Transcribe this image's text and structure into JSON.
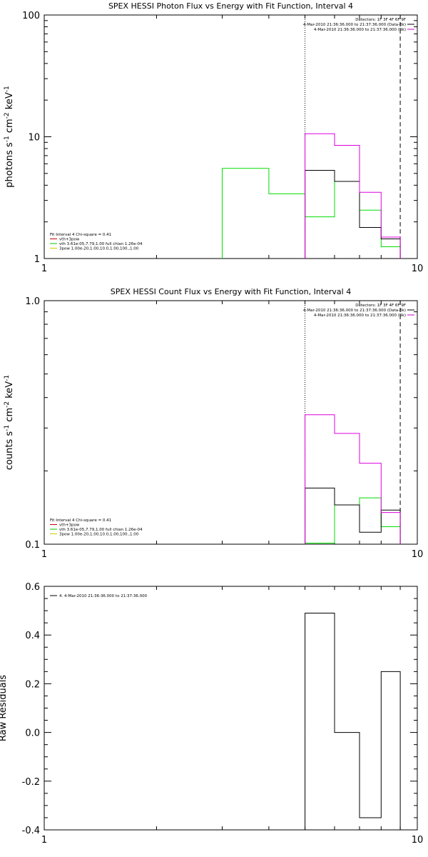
{
  "chart_data": [
    {
      "type": "line",
      "title": "SPEX HESSI Photon Flux vs Energy with Fit Function, Interval 4",
      "ylabel_html": "photons s<tspan baseline-shift='super' font-size='9'>-1</tspan> cm<tspan baseline-shift='super' font-size='9'>-2</tspan> keV<tspan baseline-shift='super' font-size='9'>-1</tspan>",
      "ylabel": "photons s-1 cm-2 keV-1",
      "xscale": "log",
      "yscale": "log",
      "xlim": [
        1,
        10
      ],
      "ylim": [
        1,
        100
      ],
      "xticks": [
        {
          "v": 1,
          "label": "1"
        },
        {
          "v": 10,
          "label": "10"
        }
      ],
      "yticks": [
        {
          "v": 1,
          "label": "1"
        },
        {
          "v": 10,
          "label": "10"
        },
        {
          "v": 100,
          "label": "100"
        }
      ],
      "vlines": [
        {
          "x": 5.0,
          "style": "dotted"
        },
        {
          "x": 9.0,
          "style": "dashed"
        }
      ],
      "legend_right": {
        "lines": [
          {
            "text": "Detectors: 1F 3F 4F 6F 9F",
            "color": null
          },
          {
            "text": "4-Mar-2010 21:36:36.000 to 21:37:36.000 (Data-Bk)",
            "color": "#000000"
          },
          {
            "text": "4-Mar-2010 21:36:36.000 to 21:37:36.000 (Bk)",
            "color": "#cc00cc"
          }
        ]
      },
      "legend_left": {
        "lines": [
          {
            "text": "Fit Interval  4    Chi-square = 0.41",
            "color": null
          },
          {
            "text": "vth+3pow",
            "color": "#cc0000"
          },
          {
            "text": "vth 3.61e-05,7.79,1.00  full chian 1.26e-04",
            "color": "#00cc00"
          },
          {
            "text": "3pow  1.00e-20,1.00,10.0,1.00,100.,1.00",
            "color": "#cccc00"
          }
        ]
      },
      "series": [
        {
          "color": "#00dd00",
          "edges": [
            3,
            4,
            5,
            6,
            7,
            8,
            9
          ],
          "values": [
            5.5,
            3.4,
            2.2,
            4.3,
            2.5,
            1.25
          ],
          "extend_left_to_floor": true
        },
        {
          "color": "#000000",
          "edges": [
            5,
            6,
            7,
            8,
            9
          ],
          "values": [
            5.3,
            4.3,
            1.8,
            1.45
          ],
          "extend_left_to_floor": true
        },
        {
          "color": "#dd00dd",
          "edges": [
            5,
            6,
            7,
            8,
            9
          ],
          "values": [
            10.6,
            8.5,
            3.5,
            1.5
          ],
          "extend_left_to_floor": true
        }
      ]
    },
    {
      "type": "line",
      "title": "SPEX HESSI Count Flux vs Energy with Fit Function, Interval 4",
      "ylabel_html": "counts s<tspan baseline-shift='super' font-size='9'>-1</tspan> cm<tspan baseline-shift='super' font-size='9'>-2</tspan> keV<tspan baseline-shift='super' font-size='9'>-1</tspan>",
      "ylabel": "counts s-1 cm-2 keV-1",
      "xscale": "log",
      "yscale": "log",
      "xlim": [
        1,
        10
      ],
      "ylim": [
        0.1,
        1.0
      ],
      "xticks": [
        {
          "v": 1,
          "label": "1"
        },
        {
          "v": 10,
          "label": "10"
        }
      ],
      "yticks": [
        {
          "v": 0.1,
          "label": "0.1"
        },
        {
          "v": 1.0,
          "label": "1.0"
        }
      ],
      "vlines": [
        {
          "x": 5.0,
          "style": "dotted"
        },
        {
          "x": 9.0,
          "style": "dashed"
        }
      ],
      "legend_right": {
        "lines": [
          {
            "text": "Detectors: 1F 3F 4F 6F 9F",
            "color": null
          },
          {
            "text": "4-Mar-2010 21:36:36.000 to 21:37:36.000 (Data-Bk)",
            "color": "#000000"
          },
          {
            "text": "4-Mar-2010 21:36:36.000 to 21:37:36.000 (Bk)",
            "color": "#cc00cc"
          }
        ]
      },
      "legend_left": {
        "lines": [
          {
            "text": "Fit Interval  4    Chi-square = 0.41",
            "color": null
          },
          {
            "text": "vth+3pow",
            "color": "#cc0000"
          },
          {
            "text": "vth 3.61e-05,7.79,1.00  full chian 1.26e-04",
            "color": "#00cc00"
          },
          {
            "text": "3pow  1.00e-20,1.00,10.0,1.00,100.,1.00",
            "color": "#cccc00"
          }
        ]
      },
      "series": [
        {
          "color": "#00dd00",
          "edges": [
            5,
            6,
            7,
            8,
            9
          ],
          "values": [
            0.101,
            0.145,
            0.155,
            0.118
          ],
          "extend_left_to_floor": true
        },
        {
          "color": "#000000",
          "edges": [
            5,
            6,
            7,
            8,
            9
          ],
          "values": [
            0.17,
            0.145,
            0.112,
            0.138
          ],
          "extend_left_to_floor": true
        },
        {
          "color": "#dd00dd",
          "edges": [
            5,
            6,
            7,
            8,
            9
          ],
          "values": [
            0.34,
            0.285,
            0.215,
            0.135
          ],
          "extend_left_to_floor": true
        }
      ]
    },
    {
      "type": "line",
      "title": "",
      "ylabel": "Raw Residuals",
      "xscale": "log",
      "yscale": "linear",
      "xlim": [
        1,
        10
      ],
      "ylim": [
        -0.4,
        0.6
      ],
      "xticks": [
        {
          "v": 1,
          "label": "1"
        },
        {
          "v": 10,
          "label": "10"
        }
      ],
      "yticks": [
        {
          "v": -0.4,
          "label": "-0.4"
        },
        {
          "v": -0.2,
          "label": "-0.2"
        },
        {
          "v": 0.0,
          "label": "0.0"
        },
        {
          "v": 0.2,
          "label": "0.2"
        },
        {
          "v": 0.4,
          "label": "0.4"
        },
        {
          "v": 0.6,
          "label": "0.6"
        }
      ],
      "vlines": [],
      "legend_right": null,
      "legend_left_top": {
        "lines": [
          {
            "text": "4.  4-Mar-2010 21:36:36.000 to 21:37:36.000",
            "color": "#000000"
          }
        ]
      },
      "series": [
        {
          "color": "#000000",
          "edges": [
            5,
            6,
            7,
            8,
            9
          ],
          "values": [
            0.49,
            0.0,
            -0.35,
            0.25
          ],
          "extend_left_to_floor": true
        }
      ]
    }
  ]
}
